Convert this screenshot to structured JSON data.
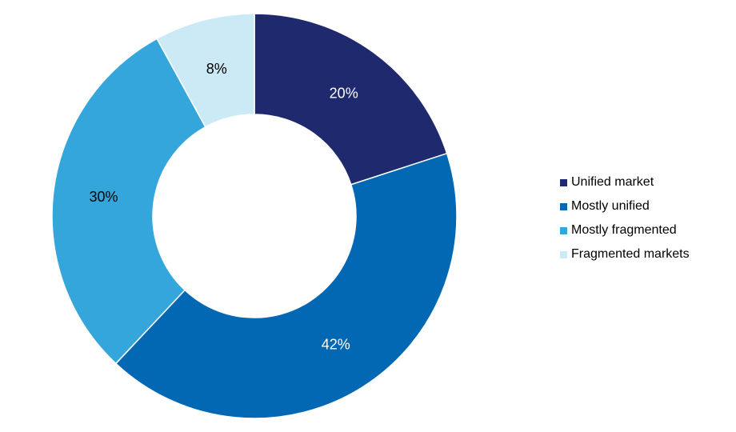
{
  "chart_data": {
    "type": "pie",
    "variant": "donut",
    "title": "",
    "legend_position": "right",
    "slices": [
      {
        "name": "Unified market",
        "value": 20,
        "label": "20%",
        "color": "#1f2a6e",
        "label_color": "#ffffff"
      },
      {
        "name": "Mostly unified",
        "value": 42,
        "label": "42%",
        "color": "#0368b3",
        "label_color": "#ffffff"
      },
      {
        "name": "Mostly fragmented",
        "value": 30,
        "label": "30%",
        "color": "#35a6dc",
        "label_color": "#000000"
      },
      {
        "name": "Fragmented markets",
        "value": 8,
        "label": "8%",
        "color": "#cce9f6",
        "label_color": "#000000"
      }
    ]
  }
}
